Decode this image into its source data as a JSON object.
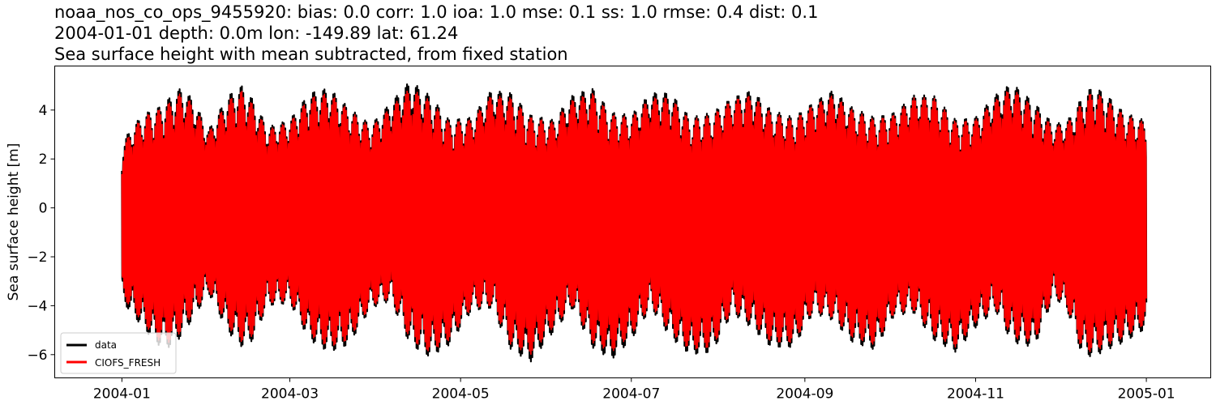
{
  "header": {
    "title_line1": "noaa_nos_co_ops_9455920: bias: 0.0  corr: 1.0  ioa: 1.0  mse: 0.1  ss: 1.0  rmse: 0.4  dist: 0.1",
    "title_line2": "2004-01-01 depth: 0.0m lon: -149.89 lat: 61.24",
    "title_line3": "Sea surface height with mean subtracted, from fixed station"
  },
  "chart_data": {
    "type": "line",
    "ylabel": "Sea surface height [m]",
    "xlabel": "",
    "x_range": [
      "2003-12-08",
      "2005-01-24"
    ],
    "ylim": [
      -6.95,
      5.8
    ],
    "x_ticks": [
      "2004-01",
      "2004-03",
      "2004-05",
      "2004-07",
      "2004-09",
      "2004-11",
      "2005-01"
    ],
    "y_ticks": [
      -6,
      -4,
      -2,
      0,
      2,
      4
    ],
    "grid": false,
    "legend_position": "lower-left",
    "data_start": "2004-01-01",
    "data_end": "2004-12-31",
    "series": [
      {
        "name": "data",
        "color": "#000000",
        "envelope_dates": [
          "2004-01-01",
          "2004-01-05",
          "2004-01-10",
          "2004-01-14",
          "2004-01-18",
          "2004-01-22",
          "2004-01-26",
          "2004-02-01",
          "2004-02-08",
          "2004-02-13",
          "2004-02-17",
          "2004-02-22",
          "2004-03-01",
          "2004-03-08",
          "2004-03-15",
          "2004-03-22",
          "2004-03-30",
          "2004-04-06",
          "2004-04-13",
          "2004-04-20",
          "2004-04-27",
          "2004-05-05",
          "2004-05-12",
          "2004-05-19",
          "2004-05-26",
          "2004-06-03",
          "2004-06-10",
          "2004-06-17",
          "2004-06-24",
          "2004-07-01",
          "2004-07-08",
          "2004-07-15",
          "2004-07-22",
          "2004-07-30",
          "2004-08-06",
          "2004-08-13",
          "2004-08-20",
          "2004-08-28",
          "2004-09-04",
          "2004-09-11",
          "2004-09-18",
          "2004-09-26",
          "2004-10-03",
          "2004-10-10",
          "2004-10-17",
          "2004-10-25",
          "2004-11-01",
          "2004-11-08",
          "2004-11-14",
          "2004-11-22",
          "2004-11-29",
          "2004-12-04",
          "2004-12-09",
          "2004-12-13",
          "2004-12-18",
          "2004-12-24",
          "2004-12-31"
        ],
        "envelope_max": [
          2.6,
          3.4,
          3.9,
          4.1,
          4.5,
          4.9,
          4.5,
          3.2,
          4.6,
          5.0,
          4.4,
          3.3,
          3.6,
          4.7,
          4.9,
          4.1,
          3.4,
          4.3,
          5.2,
          4.6,
          3.6,
          3.7,
          4.8,
          4.7,
          3.8,
          3.6,
          4.6,
          4.9,
          3.9,
          3.8,
          4.7,
          4.7,
          3.7,
          3.9,
          4.5,
          4.8,
          4.0,
          3.7,
          4.3,
          4.8,
          4.1,
          3.7,
          3.9,
          4.6,
          4.6,
          3.6,
          3.7,
          4.6,
          5.1,
          4.3,
          3.4,
          3.6,
          4.5,
          5.0,
          4.6,
          3.9,
          3.6
        ],
        "envelope_min": [
          -3.8,
          -4.4,
          -5.1,
          -5.6,
          -5.7,
          -5.3,
          -4.6,
          -3.5,
          -5.1,
          -5.7,
          -5.4,
          -4.0,
          -3.9,
          -5.4,
          -5.9,
          -5.6,
          -4.1,
          -3.8,
          -5.6,
          -6.1,
          -5.6,
          -4.2,
          -4.1,
          -5.8,
          -6.3,
          -5.1,
          -4.1,
          -5.7,
          -6.2,
          -5.4,
          -4.1,
          -5.3,
          -6.0,
          -5.9,
          -4.3,
          -4.9,
          -5.7,
          -5.7,
          -4.3,
          -4.6,
          -5.5,
          -5.8,
          -4.4,
          -4.3,
          -5.4,
          -5.9,
          -4.9,
          -4.2,
          -5.5,
          -5.7,
          -3.6,
          -4.3,
          -6.0,
          -6.1,
          -5.8,
          -5.5,
          -5.0
        ]
      },
      {
        "name": "CIOFS_FRESH",
        "color": "#ff0000",
        "envelope_dates": [
          "2004-01-01",
          "2004-01-05",
          "2004-01-10",
          "2004-01-14",
          "2004-01-18",
          "2004-01-22",
          "2004-01-26",
          "2004-02-01",
          "2004-02-08",
          "2004-02-13",
          "2004-02-17",
          "2004-02-22",
          "2004-03-01",
          "2004-03-08",
          "2004-03-15",
          "2004-03-22",
          "2004-03-30",
          "2004-04-06",
          "2004-04-13",
          "2004-04-20",
          "2004-04-27",
          "2004-05-05",
          "2004-05-12",
          "2004-05-19",
          "2004-05-26",
          "2004-06-03",
          "2004-06-10",
          "2004-06-17",
          "2004-06-24",
          "2004-07-01",
          "2004-07-08",
          "2004-07-15",
          "2004-07-22",
          "2004-07-30",
          "2004-08-06",
          "2004-08-13",
          "2004-08-20",
          "2004-08-28",
          "2004-09-04",
          "2004-09-11",
          "2004-09-18",
          "2004-09-26",
          "2004-10-03",
          "2004-10-10",
          "2004-10-17",
          "2004-10-25",
          "2004-11-01",
          "2004-11-08",
          "2004-11-14",
          "2004-11-22",
          "2004-11-29",
          "2004-12-04",
          "2004-12-09",
          "2004-12-13",
          "2004-12-18",
          "2004-12-24",
          "2004-12-31"
        ],
        "envelope_max": [
          2.4,
          3.3,
          3.8,
          4.0,
          4.3,
          4.7,
          4.3,
          3.1,
          4.4,
          4.8,
          4.2,
          3.2,
          3.5,
          4.5,
          4.7,
          4.0,
          3.3,
          4.1,
          4.9,
          4.4,
          3.5,
          3.6,
          4.6,
          4.5,
          3.7,
          3.5,
          4.4,
          4.7,
          3.8,
          3.7,
          4.5,
          4.5,
          3.6,
          3.8,
          4.4,
          4.6,
          3.9,
          3.6,
          4.2,
          4.6,
          4.0,
          3.6,
          3.8,
          4.5,
          4.5,
          3.5,
          3.6,
          4.4,
          4.9,
          4.1,
          3.3,
          3.5,
          4.3,
          4.8,
          4.4,
          3.8,
          3.5
        ],
        "envelope_min": [
          -3.6,
          -4.2,
          -4.9,
          -5.4,
          -5.5,
          -5.1,
          -4.4,
          -3.4,
          -4.9,
          -5.5,
          -5.2,
          -3.9,
          -3.8,
          -5.2,
          -5.7,
          -5.4,
          -4.0,
          -3.7,
          -5.4,
          -5.9,
          -5.4,
          -4.1,
          -4.0,
          -5.6,
          -6.0,
          -4.9,
          -4.0,
          -5.5,
          -5.9,
          -5.2,
          -4.0,
          -5.1,
          -5.8,
          -5.7,
          -4.2,
          -4.7,
          -5.5,
          -5.5,
          -4.2,
          -4.5,
          -5.3,
          -5.6,
          -4.3,
          -4.2,
          -5.2,
          -5.7,
          -4.7,
          -4.1,
          -5.3,
          -5.5,
          -3.5,
          -4.2,
          -5.8,
          -5.9,
          -5.6,
          -5.3,
          -4.8
        ]
      }
    ]
  }
}
